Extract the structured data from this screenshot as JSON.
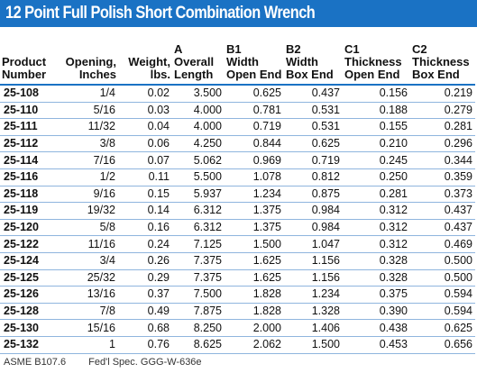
{
  "title": "12 Point Full Polish Short Combination Wrench",
  "columns": [
    {
      "lines": [
        "",
        "Product",
        "Number"
      ]
    },
    {
      "lines": [
        "",
        "Opening,",
        "Inches"
      ]
    },
    {
      "lines": [
        "",
        "Weight,",
        "lbs."
      ]
    },
    {
      "lines": [
        "A",
        "Overall",
        "Length"
      ]
    },
    {
      "lines": [
        "B1",
        "Width",
        "Open End"
      ]
    },
    {
      "lines": [
        "B2",
        "Width",
        "Box End"
      ]
    },
    {
      "lines": [
        "C1",
        "Thickness",
        "Open End"
      ]
    },
    {
      "lines": [
        "C2",
        "Thickness",
        "Box End"
      ]
    }
  ],
  "rows": [
    [
      "25-108",
      "1/4",
      "0.02",
      "3.500",
      "0.625",
      "0.437",
      "0.156",
      "0.219"
    ],
    [
      "25-110",
      "5/16",
      "0.03",
      "4.000",
      "0.781",
      "0.531",
      "0.188",
      "0.279"
    ],
    [
      "25-111",
      "11/32",
      "0.04",
      "4.000",
      "0.719",
      "0.531",
      "0.155",
      "0.281"
    ],
    [
      "25-112",
      "3/8",
      "0.06",
      "4.250",
      "0.844",
      "0.625",
      "0.210",
      "0.296"
    ],
    [
      "25-114",
      "7/16",
      "0.07",
      "5.062",
      "0.969",
      "0.719",
      "0.245",
      "0.344"
    ],
    [
      "25-116",
      "1/2",
      "0.11",
      "5.500",
      "1.078",
      "0.812",
      "0.250",
      "0.359"
    ],
    [
      "25-118",
      "9/16",
      "0.15",
      "5.937",
      "1.234",
      "0.875",
      "0.281",
      "0.373"
    ],
    [
      "25-119",
      "19/32",
      "0.14",
      "6.312",
      "1.375",
      "0.984",
      "0.312",
      "0.437"
    ],
    [
      "25-120",
      "5/8",
      "0.16",
      "6.312",
      "1.375",
      "0.984",
      "0.312",
      "0.437"
    ],
    [
      "25-122",
      "11/16",
      "0.24",
      "7.125",
      "1.500",
      "1.047",
      "0.312",
      "0.469"
    ],
    [
      "25-124",
      "3/4",
      "0.26",
      "7.375",
      "1.625",
      "1.156",
      "0.328",
      "0.500"
    ],
    [
      "25-125",
      "25/32",
      "0.29",
      "7.375",
      "1.625",
      "1.156",
      "0.328",
      "0.500"
    ],
    [
      "25-126",
      "13/16",
      "0.37",
      "7.500",
      "1.828",
      "1.234",
      "0.375",
      "0.594"
    ],
    [
      "25-128",
      "7/8",
      "0.49",
      "7.875",
      "1.828",
      "1.328",
      "0.390",
      "0.594"
    ],
    [
      "25-130",
      "15/16",
      "0.68",
      "8.250",
      "2.000",
      "1.406",
      "0.438",
      "0.625"
    ],
    [
      "25-132",
      "1",
      "0.76",
      "8.625",
      "2.062",
      "1.500",
      "0.453",
      "0.656"
    ]
  ],
  "footer": {
    "standard": "ASME B107.6",
    "spec": "Fed'l Spec. GGG-W-636e"
  },
  "colors": {
    "accent": "#1a72c4",
    "rule": "#8fb5de"
  }
}
